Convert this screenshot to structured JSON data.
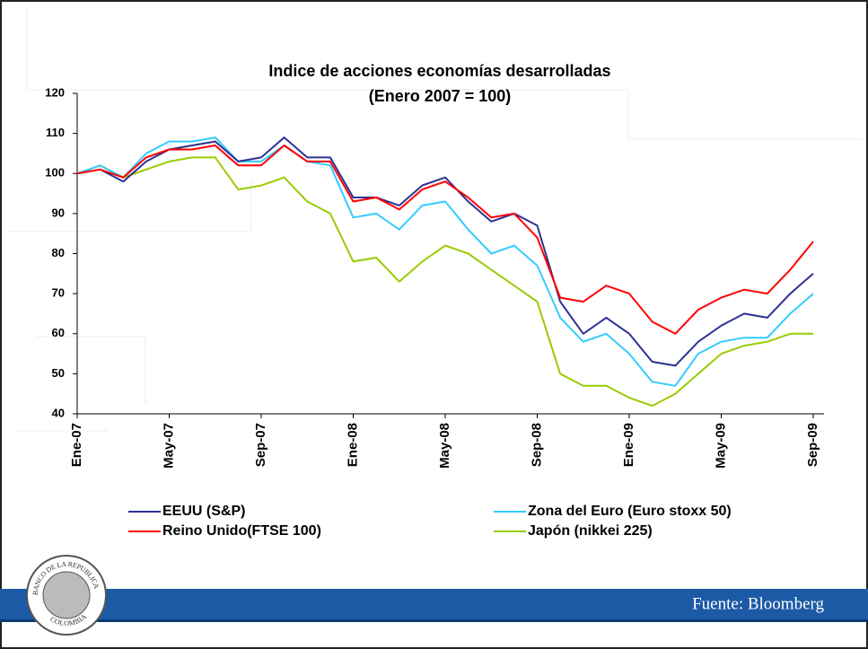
{
  "slide": {
    "source": "Fuente: Bloomberg",
    "logo_top": "BANCO DE LA REPUBLICA",
    "logo_bottom": "COLOMBIA"
  },
  "chart_data": {
    "type": "line",
    "title": "Indice  de acciones economías desarrolladas",
    "subtitle": "(Enero 2007 = 100)",
    "categories": [
      "Ene-07",
      null,
      null,
      null,
      "May-07",
      null,
      null,
      null,
      "Sep-07",
      null,
      null,
      null,
      "Ene-08",
      null,
      null,
      null,
      "May-08",
      null,
      null,
      null,
      "Sep-08",
      null,
      null,
      null,
      "Ene-09",
      null,
      null,
      null,
      "May-09",
      null,
      null,
      null,
      "Sep-09"
    ],
    "series": [
      {
        "name": "EEUU (S&P)",
        "color": "#2e3192",
        "values": [
          100,
          101,
          98,
          103,
          106,
          107,
          108,
          103,
          104,
          109,
          104,
          104,
          94,
          94,
          92,
          97,
          99,
          93,
          88,
          90,
          87,
          68,
          60,
          64,
          60,
          53,
          52,
          58,
          62,
          65,
          64,
          70,
          75
        ]
      },
      {
        "name": "Zona del Euro (Euro stoxx 50)",
        "color": "#33ccff",
        "values": [
          100,
          102,
          99,
          105,
          108,
          108,
          109,
          103,
          103,
          107,
          103,
          102,
          89,
          90,
          86,
          92,
          93,
          86,
          80,
          82,
          77,
          64,
          58,
          60,
          55,
          48,
          47,
          55,
          58,
          59,
          59,
          65,
          70
        ]
      },
      {
        "name": "Reino Unido(FTSE 100)",
        "color": "#ff0000",
        "values": [
          100,
          101,
          99,
          104,
          106,
          106,
          107,
          102,
          102,
          107,
          103,
          103,
          93,
          94,
          91,
          96,
          98,
          94,
          89,
          90,
          84,
          69,
          68,
          72,
          70,
          63,
          60,
          66,
          69,
          71,
          70,
          76,
          83
        ]
      },
      {
        "name": "Japón (nikkei 225)",
        "color": "#99cc00",
        "values": [
          100,
          102,
          99,
          101,
          103,
          104,
          104,
          96,
          97,
          99,
          93,
          90,
          78,
          79,
          73,
          78,
          82,
          80,
          76,
          72,
          68,
          50,
          47,
          47,
          44,
          42,
          45,
          50,
          55,
          57,
          58,
          60,
          60
        ]
      }
    ],
    "ylim": [
      40,
      120
    ],
    "yticks": [
      40,
      50,
      60,
      70,
      80,
      90,
      100,
      110,
      120
    ],
    "grid": false
  }
}
